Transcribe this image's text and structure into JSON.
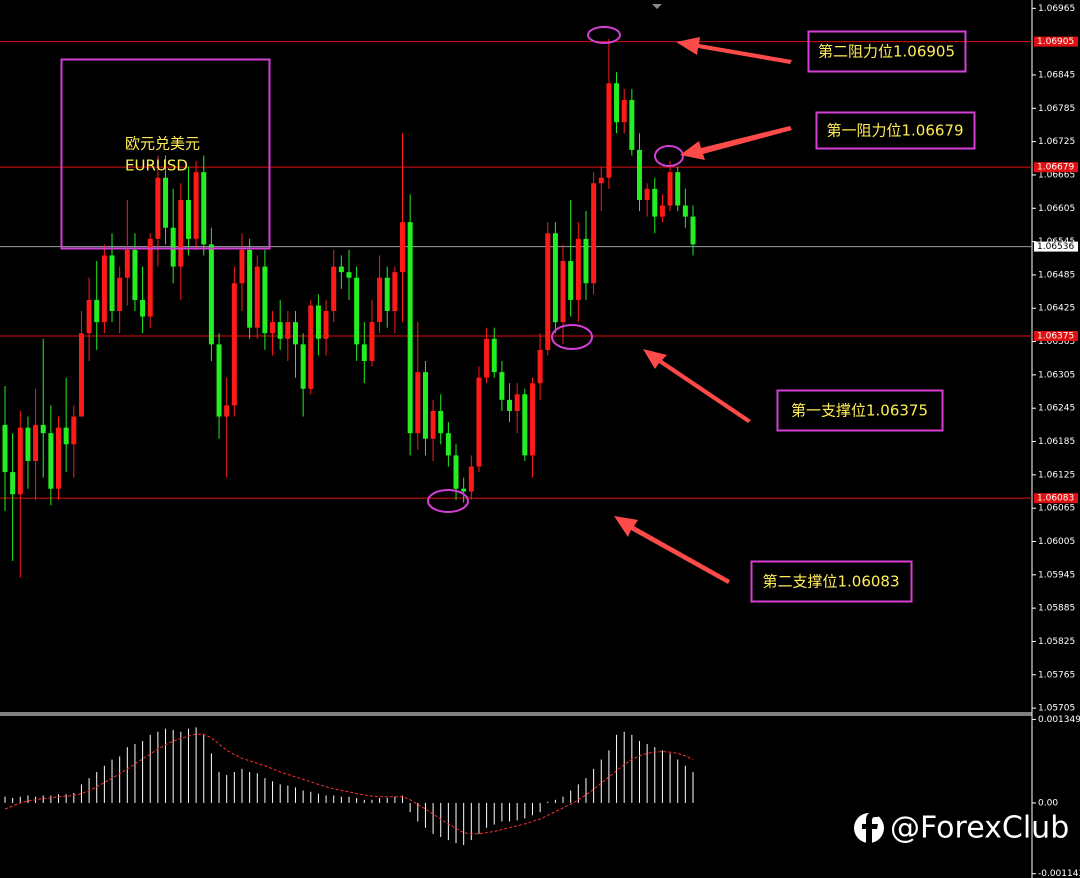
{
  "watermark": "@ForexClub",
  "chart_data": [
    {
      "type": "candlestick",
      "title": "欧元兑美元",
      "subtitle": "EURUSD",
      "up_color": "#ff1a1a",
      "down_color": "#22ee22",
      "ylim": [
        1.05698,
        1.0698
      ],
      "yticks": [
        1.06965,
        1.06845,
        1.06785,
        1.06725,
        1.06665,
        1.06605,
        1.06545,
        1.06485,
        1.06425,
        1.06365,
        1.06305,
        1.06245,
        1.06185,
        1.06125,
        1.06065,
        1.06005,
        1.05945,
        1.05885,
        1.05825,
        1.05765,
        1.05705
      ],
      "hlines": [
        {
          "value": 1.06905,
          "color": "#e01010"
        },
        {
          "value": 1.06679,
          "color": "#e01010"
        },
        {
          "value": 1.06375,
          "color": "#e01010"
        },
        {
          "value": 1.06083,
          "color": "#e01010"
        },
        {
          "value": 1.06536,
          "color": "#9aa0a8"
        }
      ],
      "annotations": [
        "第二阻力位1.06905",
        "第一阻力位1.06679",
        "第一支撑位1.06375",
        "第二支撑位1.06083"
      ],
      "open": [
        1.06215,
        1.0613,
        1.0609,
        1.0621,
        1.0615,
        1.06215,
        1.062,
        1.061,
        1.0621,
        1.0618,
        1.0623,
        1.0638,
        1.0644,
        1.064,
        1.0652,
        1.0642,
        1.0648,
        1.0653,
        1.0644,
        1.0641,
        1.0655,
        1.0666,
        1.0657,
        1.065,
        1.0662,
        1.0655,
        1.0667,
        1.0654,
        1.0636,
        1.0623,
        1.0625,
        1.0647,
        1.0653,
        1.0639,
        1.065,
        1.0638,
        1.064,
        1.0637,
        1.064,
        1.0636,
        1.0628,
        1.0643,
        1.0637,
        1.0642,
        1.065,
        1.0649,
        1.0648,
        1.0636,
        1.0633,
        1.064,
        1.0648,
        1.0642,
        1.0649,
        1.0658,
        1.062,
        1.0631,
        1.0619,
        1.0624,
        1.062,
        1.0616,
        1.061,
        1.06095,
        1.0614,
        1.063,
        1.0637,
        1.0631,
        1.0626,
        1.0624,
        1.0627,
        1.0616,
        1.0629,
        1.0635,
        1.0656,
        1.064,
        1.0651,
        1.0644,
        1.0655,
        1.0647,
        1.0665,
        1.0666,
        1.0683,
        1.0676,
        1.068,
        1.0671,
        1.0662,
        1.0664,
        1.0659,
        1.0661,
        1.0667,
        1.0661,
        1.0659
      ],
      "high": [
        1.06285,
        1.062,
        1.0624,
        1.0623,
        1.0628,
        1.0637,
        1.0625,
        1.0623,
        1.063,
        1.0625,
        1.0642,
        1.0648,
        1.0651,
        1.0654,
        1.0656,
        1.065,
        1.0662,
        1.0656,
        1.065,
        1.0656,
        1.067,
        1.067,
        1.0664,
        1.0665,
        1.0668,
        1.0669,
        1.067,
        1.0657,
        1.0638,
        1.063,
        1.065,
        1.0656,
        1.0655,
        1.0652,
        1.0653,
        1.0642,
        1.0644,
        1.0642,
        1.0642,
        1.0638,
        1.0644,
        1.0645,
        1.0644,
        1.0653,
        1.0652,
        1.0653,
        1.065,
        1.064,
        1.0644,
        1.0652,
        1.065,
        1.065,
        1.0674,
        1.0663,
        1.064,
        1.0633,
        1.0626,
        1.0627,
        1.0622,
        1.0618,
        1.0612,
        1.0616,
        1.0632,
        1.0639,
        1.0639,
        1.0633,
        1.0629,
        1.0629,
        1.0628,
        1.063,
        1.0638,
        1.0658,
        1.0658,
        1.0654,
        1.0662,
        1.0658,
        1.066,
        1.0667,
        1.0668,
        1.0691,
        1.0685,
        1.0682,
        1.0682,
        1.0674,
        1.0665,
        1.0666,
        1.0663,
        1.0669,
        1.0668,
        1.0664,
        1.0661
      ],
      "low": [
        1.0606,
        1.0597,
        1.0594,
        1.061,
        1.0608,
        1.0612,
        1.0607,
        1.0608,
        1.0613,
        1.0612,
        1.0623,
        1.0633,
        1.0635,
        1.0638,
        1.064,
        1.0638,
        1.0643,
        1.0642,
        1.0638,
        1.0639,
        1.065,
        1.0654,
        1.0647,
        1.0644,
        1.0652,
        1.0653,
        1.0652,
        1.0633,
        1.0619,
        1.0612,
        1.0623,
        1.0642,
        1.0637,
        1.0637,
        1.0635,
        1.0634,
        1.0635,
        1.0633,
        1.063,
        1.0623,
        1.0627,
        1.0634,
        1.0634,
        1.064,
        1.0646,
        1.0644,
        1.0633,
        1.0629,
        1.0632,
        1.0638,
        1.0639,
        1.0638,
        1.064,
        1.0616,
        1.0617,
        1.0616,
        1.0615,
        1.0618,
        1.0614,
        1.0608,
        1.06075,
        1.0608,
        1.0613,
        1.0629,
        1.063,
        1.0624,
        1.0622,
        1.062,
        1.0615,
        1.0612,
        1.0626,
        1.0634,
        1.0638,
        1.0636,
        1.0641,
        1.064,
        1.0644,
        1.0645,
        1.066,
        1.0664,
        1.0674,
        1.0674,
        1.067,
        1.066,
        1.0659,
        1.0656,
        1.0658,
        1.066,
        1.066,
        1.0657,
        1.0652
      ],
      "close": [
        1.0613,
        1.0609,
        1.0621,
        1.0615,
        1.06215,
        1.062,
        1.061,
        1.0621,
        1.0618,
        1.0623,
        1.0638,
        1.0644,
        1.064,
        1.0652,
        1.0642,
        1.0648,
        1.0653,
        1.0644,
        1.0641,
        1.0655,
        1.0666,
        1.0657,
        1.065,
        1.0662,
        1.0655,
        1.0667,
        1.0654,
        1.0636,
        1.0623,
        1.0625,
        1.0647,
        1.0653,
        1.0639,
        1.065,
        1.0638,
        1.064,
        1.0637,
        1.064,
        1.0636,
        1.0628,
        1.0643,
        1.0637,
        1.0642,
        1.065,
        1.0649,
        1.0648,
        1.0636,
        1.0633,
        1.064,
        1.0648,
        1.0642,
        1.0649,
        1.0658,
        1.062,
        1.0631,
        1.0619,
        1.0624,
        1.062,
        1.0616,
        1.061,
        1.06095,
        1.0614,
        1.063,
        1.0637,
        1.0631,
        1.0626,
        1.0624,
        1.0627,
        1.0616,
        1.0629,
        1.0635,
        1.0656,
        1.064,
        1.0651,
        1.0644,
        1.0655,
        1.0647,
        1.0665,
        1.0666,
        1.0683,
        1.0676,
        1.068,
        1.0671,
        1.0662,
        1.0664,
        1.0659,
        1.0661,
        1.0667,
        1.0661,
        1.0659,
        1.0654
      ]
    },
    {
      "type": "bar",
      "ylim": [
        -0.00118,
        0.00142
      ],
      "yticks": [
        0.001349,
        {
          "value": 0,
          "label": "0.00"
        },
        -0.001143
      ],
      "series": [
        {
          "color": "#ffffff",
          "values": [
            0.0001,
            8e-05,
            0.0001,
            0.00012,
            0.0001,
            0.00012,
            0.00012,
            0.00014,
            0.00014,
            0.00016,
            0.0003,
            0.0004,
            0.0005,
            0.0006,
            0.0007,
            0.00075,
            0.0009,
            0.00095,
            0.001,
            0.0011,
            0.00115,
            0.0012,
            0.00118,
            0.00115,
            0.0012,
            0.00122,
            0.0011,
            0.0008,
            0.0005,
            0.00045,
            0.0005,
            0.00055,
            0.0005,
            0.00048,
            0.0004,
            0.00035,
            0.0003,
            0.00028,
            0.00025,
            0.0002,
            0.00018,
            0.00015,
            0.00012,
            0.00012,
            0.0001,
            0.0001,
            8e-05,
            5e-05,
            5e-05,
            8e-05,
            8e-05,
            0.0001,
            0.00012,
            -0.00015,
            -0.0003,
            -0.0004,
            -0.0005,
            -0.00055,
            -0.0006,
            -0.00065,
            -0.00068,
            -0.0006,
            -0.0005,
            -0.0004,
            -0.00035,
            -0.0003,
            -0.0003,
            -0.00028,
            -0.00025,
            -0.0002,
            -0.00015,
            2e-05,
            5e-05,
            0.0001,
            0.0002,
            0.0003,
            0.0004,
            0.00055,
            0.0007,
            0.00085,
            0.0011,
            0.00115,
            0.0011,
            0.001,
            0.00095,
            0.0009,
            0.00085,
            0.0008,
            0.0007,
            0.0006,
            0.0005
          ]
        },
        {
          "color": "#ff3030",
          "values": [
            -0.0001,
            -5e-05,
            0,
            3e-05,
            5e-05,
            7e-05,
            8e-05,
            0.0001,
            0.00011,
            0.00012,
            0.00015,
            0.0002,
            0.00026,
            0.00033,
            0.0004,
            0.00047,
            0.00055,
            0.00063,
            0.00071,
            0.00079,
            0.00087,
            0.00094,
            0.001,
            0.00104,
            0.00108,
            0.00111,
            0.00111,
            0.00105,
            0.00095,
            0.00085,
            0.00078,
            0.00072,
            0.00068,
            0.00064,
            0.0006,
            0.00055,
            0.0005,
            0.00046,
            0.00042,
            0.00038,
            0.00034,
            0.0003,
            0.00026,
            0.00023,
            0.0002,
            0.00018,
            0.00015,
            0.00013,
            0.00011,
            0.0001,
            0.0001,
            0.0001,
            0.0001,
            5e-05,
            -2e-05,
            -0.0001,
            -0.00018,
            -0.00026,
            -0.00034,
            -0.00041,
            -0.00048,
            -0.0005,
            -0.0005,
            -0.00048,
            -0.00046,
            -0.00043,
            -0.0004,
            -0.00037,
            -0.00034,
            -0.0003,
            -0.00026,
            -0.0002,
            -0.00014,
            -8e-05,
            -2e-05,
            5e-05,
            0.00013,
            0.00022,
            0.00032,
            0.00042,
            0.00052,
            0.00062,
            0.0007,
            0.00076,
            0.0008,
            0.00082,
            0.00083,
            0.00082,
            0.0008,
            0.00076,
            0.0007
          ]
        }
      ]
    }
  ]
}
